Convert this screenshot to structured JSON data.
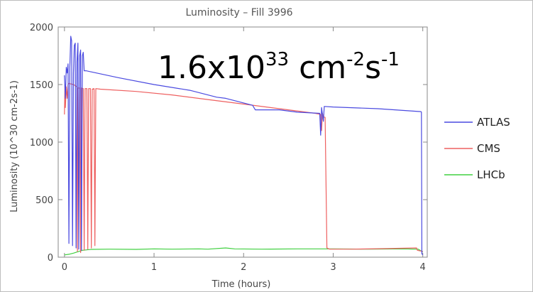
{
  "chart_data": {
    "type": "line",
    "title": "Luminosity – Fill 3996",
    "xlabel": "Time (hours)",
    "ylabel": "Luminosity (10^30 cm-2s-1)",
    "xlim": [
      -0.07,
      4.05
    ],
    "ylim": [
      0,
      2000
    ],
    "xticks": [
      0,
      1,
      2,
      3,
      4
    ],
    "yticks": [
      0,
      500,
      1000,
      1500,
      2000
    ],
    "grid": false,
    "legend_position": "right",
    "annotation": {
      "base": "1.6x10",
      "exp1": "33",
      "mid1": " cm",
      "exp2": "-2",
      "mid2": "s",
      "exp3": "-1"
    },
    "series": [
      {
        "name": "ATLAS",
        "color": "#4a4ae0",
        "points": [
          [
            0.0,
            1580
          ],
          [
            0.01,
            1380
          ],
          [
            0.02,
            1650
          ],
          [
            0.03,
            1600
          ],
          [
            0.04,
            1680
          ],
          [
            0.05,
            120
          ],
          [
            0.06,
            1650
          ],
          [
            0.07,
            1920
          ],
          [
            0.08,
            1880
          ],
          [
            0.09,
            100
          ],
          [
            0.1,
            1600
          ],
          [
            0.11,
            1840
          ],
          [
            0.12,
            1860
          ],
          [
            0.13,
            80
          ],
          [
            0.14,
            1700
          ],
          [
            0.15,
            1860
          ],
          [
            0.16,
            70
          ],
          [
            0.17,
            1750
          ],
          [
            0.18,
            1800
          ],
          [
            0.19,
            60
          ],
          [
            0.2,
            1750
          ],
          [
            0.21,
            1780
          ],
          [
            0.22,
            1620
          ],
          [
            0.24,
            1620
          ],
          [
            0.3,
            1610
          ],
          [
            0.6,
            1560
          ],
          [
            1.0,
            1500
          ],
          [
            1.4,
            1450
          ],
          [
            1.7,
            1390
          ],
          [
            1.8,
            1380
          ],
          [
            2.1,
            1320
          ],
          [
            2.13,
            1280
          ],
          [
            2.4,
            1280
          ],
          [
            2.6,
            1260
          ],
          [
            2.85,
            1250
          ],
          [
            2.86,
            1060
          ],
          [
            2.87,
            1300
          ],
          [
            2.89,
            1180
          ],
          [
            2.9,
            1310
          ],
          [
            3.0,
            1305
          ],
          [
            3.5,
            1290
          ],
          [
            3.98,
            1265
          ],
          [
            3.985,
            1260
          ],
          [
            3.99,
            30
          ],
          [
            4.0,
            20
          ]
        ]
      },
      {
        "name": "CMS",
        "color": "#ee6060",
        "points": [
          [
            0.0,
            1240
          ],
          [
            0.005,
            1500
          ],
          [
            0.01,
            1300
          ],
          [
            0.02,
            1480
          ],
          [
            0.03,
            1380
          ],
          [
            0.04,
            1500
          ],
          [
            0.05,
            1510
          ],
          [
            0.1,
            1500
          ],
          [
            0.14,
            1480
          ],
          [
            0.145,
            50
          ],
          [
            0.15,
            1470
          ],
          [
            0.17,
            1470
          ],
          [
            0.18,
            40
          ],
          [
            0.19,
            1470
          ],
          [
            0.21,
            1465
          ],
          [
            0.22,
            60
          ],
          [
            0.23,
            1465
          ],
          [
            0.25,
            1465
          ],
          [
            0.26,
            70
          ],
          [
            0.27,
            1465
          ],
          [
            0.29,
            1465
          ],
          [
            0.3,
            80
          ],
          [
            0.31,
            1460
          ],
          [
            0.33,
            1465
          ],
          [
            0.34,
            100
          ],
          [
            0.35,
            1465
          ],
          [
            0.4,
            1460
          ],
          [
            0.8,
            1440
          ],
          [
            1.2,
            1410
          ],
          [
            1.6,
            1370
          ],
          [
            2.0,
            1330
          ],
          [
            2.4,
            1290
          ],
          [
            2.8,
            1250
          ],
          [
            2.86,
            1240
          ],
          [
            2.87,
            1100
          ],
          [
            2.88,
            1250
          ],
          [
            2.89,
            1220
          ],
          [
            2.91,
            1215
          ],
          [
            2.93,
            80
          ],
          [
            2.96,
            70
          ],
          [
            3.2,
            70
          ],
          [
            3.6,
            75
          ],
          [
            3.93,
            80
          ],
          [
            3.94,
            60
          ],
          [
            4.0,
            50
          ]
        ]
      },
      {
        "name": "LHCb",
        "color": "#40d040",
        "points": [
          [
            0.0,
            20
          ],
          [
            0.05,
            25
          ],
          [
            0.1,
            35
          ],
          [
            0.2,
            60
          ],
          [
            0.3,
            68
          ],
          [
            0.5,
            70
          ],
          [
            0.8,
            68
          ],
          [
            1.0,
            72
          ],
          [
            1.2,
            70
          ],
          [
            1.5,
            72
          ],
          [
            1.6,
            70
          ],
          [
            1.8,
            80
          ],
          [
            1.9,
            72
          ],
          [
            2.2,
            70
          ],
          [
            2.6,
            72
          ],
          [
            3.0,
            72
          ],
          [
            3.4,
            70
          ],
          [
            3.8,
            72
          ],
          [
            3.9,
            70
          ],
          [
            3.95,
            70
          ],
          [
            4.0,
            45
          ]
        ]
      }
    ]
  }
}
